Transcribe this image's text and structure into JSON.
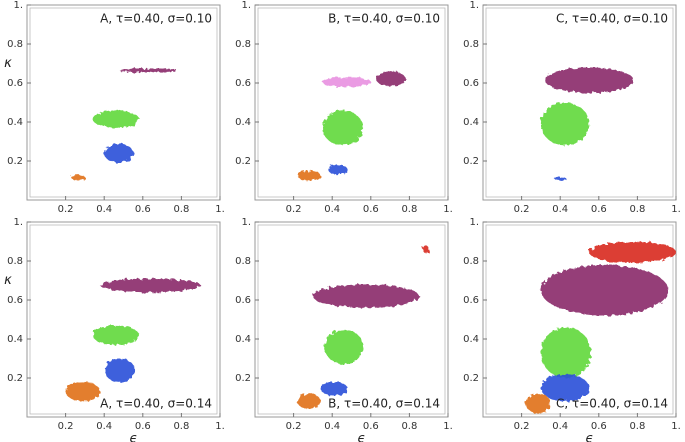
{
  "chart_data": [
    {
      "type": "blob",
      "title": "A, τ=0.40, σ=0.10",
      "ylabel": "κ",
      "xlim": [
        0,
        1
      ],
      "ylim": [
        0,
        1
      ],
      "xticks": [
        0.2,
        0.4,
        0.6,
        0.8,
        {
          "value": 1,
          "label": "1."
        }
      ],
      "yticks": [
        0.2,
        0.4,
        0.6,
        0.8,
        {
          "value": 1,
          "label": "1."
        }
      ],
      "blobs": [
        {
          "color": "#8a2a6a",
          "x0": 0.48,
          "x1": 0.78,
          "y0": 0.655,
          "y1": 0.675
        },
        {
          "color": "#5fd83a",
          "x0": 0.34,
          "x1": 0.58,
          "y0": 0.37,
          "y1": 0.46
        },
        {
          "color": "#2a4fd8",
          "x0": 0.4,
          "x1": 0.55,
          "y0": 0.19,
          "y1": 0.29
        },
        {
          "color": "#e0701a",
          "x0": 0.23,
          "x1": 0.3,
          "y0": 0.1,
          "y1": 0.13
        }
      ]
    },
    {
      "type": "blob",
      "title": "B, τ=0.40, σ=0.10",
      "xlim": [
        0,
        1
      ],
      "ylim": [
        0,
        1
      ],
      "xticks": [
        0.2,
        0.4,
        0.6,
        0.8,
        {
          "value": 1,
          "label": "1."
        }
      ],
      "yticks": [
        0.2,
        0.4,
        0.6,
        0.8,
        {
          "value": 1,
          "label": "1."
        }
      ],
      "blobs": [
        {
          "color": "#e890e0",
          "x0": 0.35,
          "x1": 0.6,
          "y0": 0.58,
          "y1": 0.63
        },
        {
          "color": "#8a2a6a",
          "x0": 0.63,
          "x1": 0.78,
          "y0": 0.58,
          "y1": 0.66
        },
        {
          "color": "#5fd83a",
          "x0": 0.35,
          "x1": 0.56,
          "y0": 0.28,
          "y1": 0.46
        },
        {
          "color": "#2a4fd8",
          "x0": 0.38,
          "x1": 0.48,
          "y0": 0.13,
          "y1": 0.18
        },
        {
          "color": "#e0701a",
          "x0": 0.22,
          "x1": 0.34,
          "y0": 0.1,
          "y1": 0.15
        }
      ]
    },
    {
      "type": "blob",
      "title": "C, τ=0.40, σ=0.10",
      "xlim": [
        0,
        1
      ],
      "ylim": [
        0,
        1
      ],
      "xticks": [
        0.2,
        0.4,
        0.6,
        0.8,
        {
          "value": 1,
          "label": "1."
        }
      ],
      "yticks": [
        0.2,
        0.4,
        0.6,
        0.8,
        {
          "value": 1,
          "label": "1."
        }
      ],
      "blobs": [
        {
          "color": "#8a2a6a",
          "x0": 0.32,
          "x1": 0.78,
          "y0": 0.55,
          "y1": 0.68
        },
        {
          "color": "#5fd83a",
          "x0": 0.3,
          "x1": 0.55,
          "y0": 0.28,
          "y1": 0.5
        },
        {
          "color": "#2a4fd8",
          "x0": 0.37,
          "x1": 0.43,
          "y0": 0.1,
          "y1": 0.12
        }
      ]
    },
    {
      "type": "blob",
      "title": "A, τ=0.40, σ=0.14",
      "xlabel": "ϵ",
      "ylabel": "κ",
      "xlim": [
        0,
        1
      ],
      "ylim": [
        0,
        1
      ],
      "xticks": [
        0.2,
        0.4,
        0.6,
        0.8,
        {
          "value": 1,
          "label": "1."
        }
      ],
      "yticks": [
        0.2,
        0.4,
        0.6,
        0.8,
        {
          "value": 1,
          "label": "1."
        }
      ],
      "blobs": [
        {
          "color": "#8a2a6a",
          "x0": 0.38,
          "x1": 0.9,
          "y0": 0.64,
          "y1": 0.71
        },
        {
          "color": "#5fd83a",
          "x0": 0.34,
          "x1": 0.58,
          "y0": 0.37,
          "y1": 0.47
        },
        {
          "color": "#2a4fd8",
          "x0": 0.4,
          "x1": 0.56,
          "y0": 0.18,
          "y1": 0.3
        },
        {
          "color": "#e0701a",
          "x0": 0.2,
          "x1": 0.38,
          "y0": 0.08,
          "y1": 0.18
        }
      ]
    },
    {
      "type": "blob",
      "title": "B, τ=0.40, σ=0.14",
      "xlabel": "ϵ",
      "xlim": [
        0,
        1
      ],
      "ylim": [
        0,
        1
      ],
      "xticks": [
        0.2,
        0.4,
        0.6,
        0.8,
        {
          "value": 1,
          "label": "1."
        }
      ],
      "yticks": [
        0.2,
        0.4,
        0.6,
        0.8,
        {
          "value": 1,
          "label": "1."
        }
      ],
      "blobs": [
        {
          "color": "#8a2a6a",
          "x0": 0.3,
          "x1": 0.85,
          "y0": 0.56,
          "y1": 0.68
        },
        {
          "color": "#d8281e",
          "x0": 0.87,
          "x1": 0.9,
          "y0": 0.84,
          "y1": 0.88
        },
        {
          "color": "#5fd83a",
          "x0": 0.36,
          "x1": 0.56,
          "y0": 0.27,
          "y1": 0.45
        },
        {
          "color": "#2a4fd8",
          "x0": 0.34,
          "x1": 0.48,
          "y0": 0.11,
          "y1": 0.18
        },
        {
          "color": "#e0701a",
          "x0": 0.22,
          "x1": 0.34,
          "y0": 0.04,
          "y1": 0.12
        }
      ]
    },
    {
      "type": "blob",
      "title": "C, τ=0.40, σ=0.14",
      "xlabel": "ϵ",
      "xlim": [
        0,
        1
      ],
      "ylim": [
        0,
        1
      ],
      "xticks": [
        0.2,
        0.4,
        0.6,
        0.8,
        {
          "value": 1,
          "label": "1."
        }
      ],
      "yticks": [
        0.2,
        0.4,
        0.6,
        0.8,
        {
          "value": 1,
          "label": "1."
        }
      ],
      "blobs": [
        {
          "color": "#d8281e",
          "x0": 0.55,
          "x1": 1,
          "y0": 0.79,
          "y1": 0.9
        },
        {
          "color": "#8a2a6a",
          "x0": 0.3,
          "x1": 0.96,
          "y0": 0.52,
          "y1": 0.78
        },
        {
          "color": "#5fd83a",
          "x0": 0.3,
          "x1": 0.56,
          "y0": 0.2,
          "y1": 0.46
        },
        {
          "color": "#2a4fd8",
          "x0": 0.3,
          "x1": 0.55,
          "y0": 0.08,
          "y1": 0.22
        },
        {
          "color": "#e0701a",
          "x0": 0.22,
          "x1": 0.35,
          "y0": 0.02,
          "y1": 0.12
        }
      ]
    }
  ]
}
